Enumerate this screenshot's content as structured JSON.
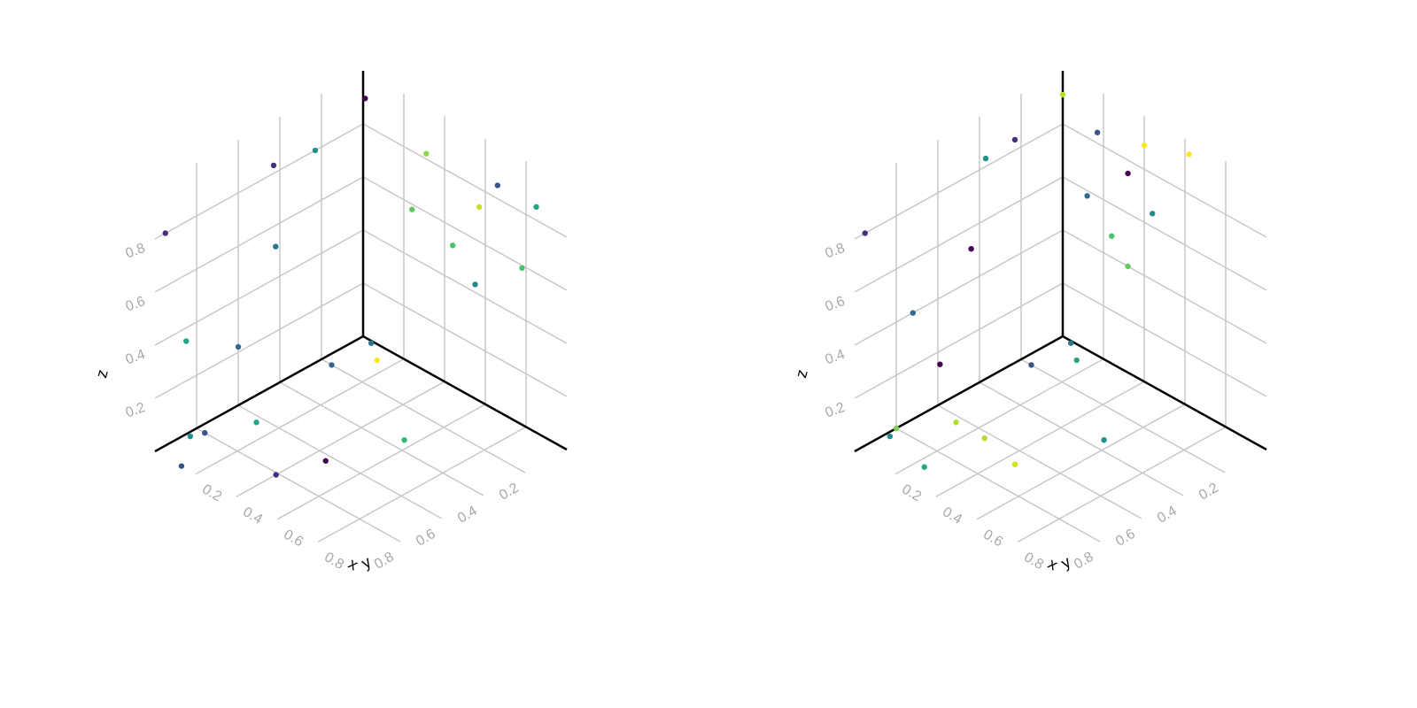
{
  "chart_data": [
    {
      "type": "scatter",
      "title": "",
      "xlabel": "x",
      "ylabel": "y",
      "zlabel": "z",
      "xlim": [
        0,
        1
      ],
      "ylim": [
        0,
        1
      ],
      "zlim": [
        0,
        1
      ],
      "x_ticks": [
        "0.2",
        "0.4",
        "0.6",
        "0.8"
      ],
      "y_ticks": [
        "0.2",
        "0.4",
        "0.6",
        "0.8"
      ],
      "z_ticks": [
        "0.2",
        "0.4",
        "0.6",
        "0.8"
      ],
      "grid": true,
      "colormap": "viridis",
      "points": [
        {
          "x": 0.01,
          "y": 0.0,
          "z": 0.9,
          "color": "#440154"
        },
        {
          "x": 0.31,
          "y": 0.0,
          "z": 0.82,
          "color": "#8fd744"
        },
        {
          "x": 0.66,
          "y": 0.0,
          "z": 0.85,
          "color": "#3b528b"
        },
        {
          "x": 0.85,
          "y": 0.0,
          "z": 0.85,
          "color": "#21a685"
        },
        {
          "x": 0.57,
          "y": 0.0,
          "z": 0.73,
          "color": "#c8e020"
        },
        {
          "x": 0.24,
          "y": 0.0,
          "z": 0.58,
          "color": "#5ec962"
        },
        {
          "x": 0.44,
          "y": 0.0,
          "z": 0.53,
          "color": "#4ac16d"
        },
        {
          "x": 0.78,
          "y": 0.0,
          "z": 0.59,
          "color": "#4ac16d"
        },
        {
          "x": 0.55,
          "y": 0.0,
          "z": 0.43,
          "color": "#23888e"
        },
        {
          "x": 0.0,
          "y": 0.43,
          "z": 0.83,
          "color": "#472d7b"
        },
        {
          "x": 0.0,
          "y": 0.23,
          "z": 0.8,
          "color": "#21908d"
        },
        {
          "x": 0.0,
          "y": 0.95,
          "z": 0.8,
          "color": "#472d7b"
        },
        {
          "x": 0.0,
          "y": 0.42,
          "z": 0.52,
          "color": "#2a788e"
        },
        {
          "x": 0.0,
          "y": 0.85,
          "z": 0.35,
          "color": "#21a685"
        },
        {
          "x": 0.0,
          "y": 0.6,
          "z": 0.22,
          "color": "#31688e"
        },
        {
          "x": 0.05,
          "y": 0.2,
          "z": 0.0,
          "color": "#31688e"
        },
        {
          "x": 0.14,
          "y": 0.07,
          "z": 0.0,
          "color": "#fde725"
        },
        {
          "x": 0.05,
          "y": 0.01,
          "z": 0.0,
          "color": "#2a788e"
        },
        {
          "x": 0.04,
          "y": 0.8,
          "z": 0.0,
          "color": "#3b528b"
        },
        {
          "x": 0.02,
          "y": 0.85,
          "z": 0.0,
          "color": "#21908d"
        },
        {
          "x": 0.12,
          "y": 0.63,
          "z": 0.0,
          "color": "#22a884"
        },
        {
          "x": 0.46,
          "y": 0.63,
          "z": 0.0,
          "color": "#440154"
        },
        {
          "x": 0.56,
          "y": 0.35,
          "z": 0.0,
          "color": "#35b779"
        },
        {
          "x": 0.4,
          "y": 0.81,
          "z": 0.0,
          "color": "#472d7b"
        },
        {
          "x": 0.13,
          "y": 1.0,
          "z": 0.0,
          "color": "#3b528b"
        }
      ]
    },
    {
      "type": "scatter",
      "title": "",
      "xlabel": "x",
      "ylabel": "y",
      "zlabel": "z",
      "xlim": [
        0,
        1
      ],
      "ylim": [
        0,
        1
      ],
      "zlim": [
        0,
        1
      ],
      "x_ticks": [
        "0.2",
        "0.4",
        "0.6",
        "0.8"
      ],
      "y_ticks": [
        "0.2",
        "0.4",
        "0.6",
        "0.8"
      ],
      "z_ticks": [
        "0.2",
        "0.4",
        "0.6",
        "0.8"
      ],
      "grid": true,
      "colormap": "viridis",
      "points": [
        {
          "x": 0.0,
          "y": 0.0,
          "z": 0.91,
          "color": "#b5de2b"
        },
        {
          "x": 0.17,
          "y": 0.0,
          "z": 0.84,
          "color": "#3b528b"
        },
        {
          "x": 0.4,
          "y": 0.0,
          "z": 0.89,
          "color": "#fde725"
        },
        {
          "x": 0.62,
          "y": 0.0,
          "z": 0.95,
          "color": "#fde725"
        },
        {
          "x": 0.32,
          "y": 0.0,
          "z": 0.75,
          "color": "#440154"
        },
        {
          "x": 0.12,
          "y": 0.0,
          "z": 0.58,
          "color": "#31688e"
        },
        {
          "x": 0.24,
          "y": 0.0,
          "z": 0.48,
          "color": "#4ac16d"
        },
        {
          "x": 0.44,
          "y": 0.0,
          "z": 0.65,
          "color": "#21908d"
        },
        {
          "x": 0.32,
          "y": 0.0,
          "z": 0.4,
          "color": "#5ec962"
        },
        {
          "x": 0.0,
          "y": 0.23,
          "z": 0.84,
          "color": "#472d7b"
        },
        {
          "x": 0.0,
          "y": 0.37,
          "z": 0.83,
          "color": "#21908d"
        },
        {
          "x": 0.0,
          "y": 0.95,
          "z": 0.8,
          "color": "#472d7b"
        },
        {
          "x": 0.0,
          "y": 0.44,
          "z": 0.52,
          "color": "#440154"
        },
        {
          "x": 0.0,
          "y": 0.72,
          "z": 0.4,
          "color": "#31688e"
        },
        {
          "x": 0.0,
          "y": 0.59,
          "z": 0.15,
          "color": "#440154"
        },
        {
          "x": 0.05,
          "y": 0.2,
          "z": 0.0,
          "color": "#3b528b"
        },
        {
          "x": 0.05,
          "y": 0.01,
          "z": 0.0,
          "color": "#2a788e"
        },
        {
          "x": 0.14,
          "y": 0.07,
          "z": 0.0,
          "color": "#22a884"
        },
        {
          "x": 0.0,
          "y": 0.8,
          "z": 0.0,
          "color": "#7ad151"
        },
        {
          "x": 0.02,
          "y": 0.85,
          "z": 0.0,
          "color": "#21908d"
        },
        {
          "x": 0.12,
          "y": 0.63,
          "z": 0.0,
          "color": "#b5de2b"
        },
        {
          "x": 0.26,
          "y": 0.63,
          "z": 0.0,
          "color": "#b5de2b"
        },
        {
          "x": 0.56,
          "y": 0.35,
          "z": 0.0,
          "color": "#21908d"
        },
        {
          "x": 0.45,
          "y": 0.67,
          "z": 0.0,
          "color": "#d2e21b"
        },
        {
          "x": 0.24,
          "y": 0.9,
          "z": 0.0,
          "color": "#22a884"
        }
      ]
    }
  ]
}
